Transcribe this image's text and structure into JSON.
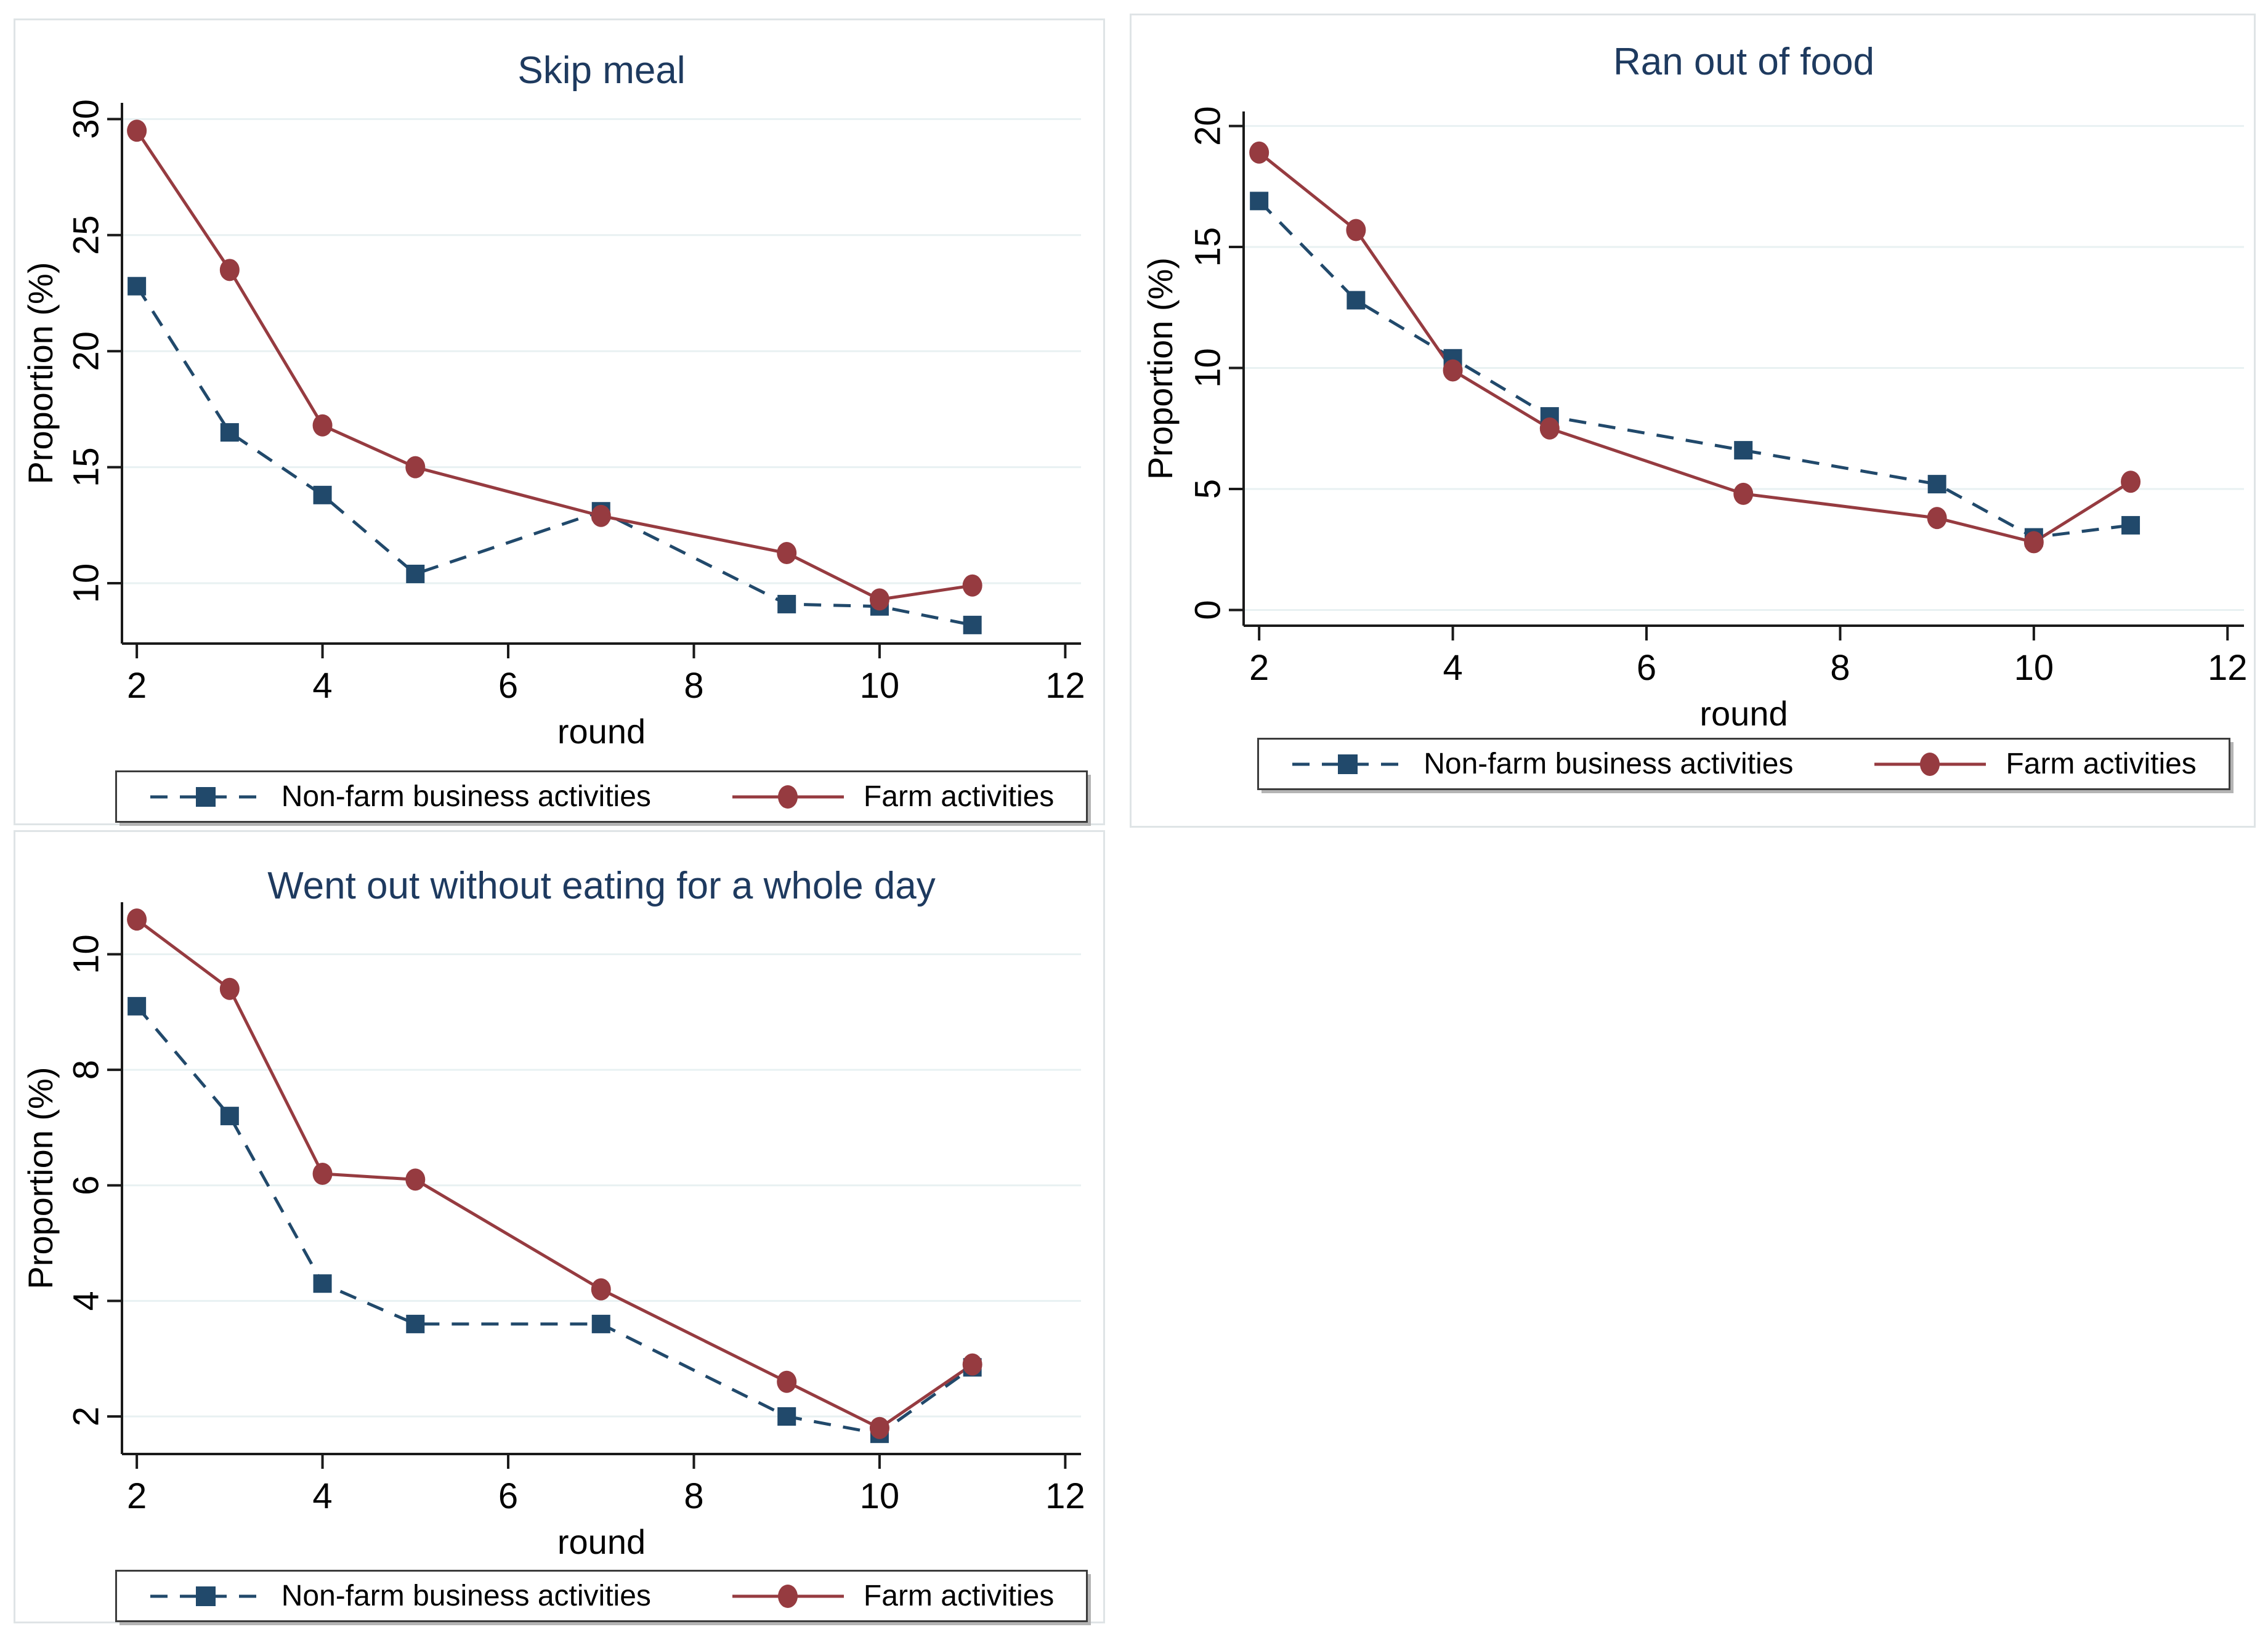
{
  "figure": {
    "background": "#ffffff",
    "panel_border_color": "#dfe4e6",
    "gridline_color": "#e8f1f2",
    "axis_color": "#1a1a1a",
    "title_color": "#1e3a5f"
  },
  "legend": {
    "nonfarm_label": "Non-farm business activities",
    "farm_label": "Farm activities",
    "nonfarm_color": "#21496b",
    "farm_color": "#963b40",
    "nonfarm_line": "dashed",
    "farm_line": "solid",
    "nonfarm_marker": "square",
    "farm_marker": "circle"
  },
  "chart_data": [
    {
      "type": "line",
      "title": "Skip meal",
      "xlabel": "round",
      "ylabel": "Proportion (%)",
      "x": [
        2,
        3,
        4,
        5,
        7,
        9,
        10,
        11
      ],
      "xticks": [
        2,
        4,
        6,
        8,
        10,
        12
      ],
      "yticks": [
        10,
        15,
        20,
        25,
        30
      ],
      "xlim": [
        1.84,
        12.17
      ],
      "ylim": [
        7.4,
        30.7
      ],
      "grid": "horizontal",
      "legend_position": "bottom-center",
      "series": [
        {
          "name": "Non-farm business activities",
          "color": "#21496b",
          "line": "dashed",
          "marker": "square",
          "values": [
            22.8,
            16.5,
            13.8,
            10.4,
            13.1,
            9.1,
            9.0,
            8.2
          ]
        },
        {
          "name": "Farm activities",
          "color": "#963b40",
          "line": "solid",
          "marker": "circle",
          "values": [
            29.5,
            23.5,
            16.8,
            15.0,
            12.9,
            11.3,
            9.3,
            9.9
          ]
        }
      ]
    },
    {
      "type": "line",
      "title": "Ran out of food",
      "xlabel": "round",
      "ylabel": "Proportion (%)",
      "x": [
        2,
        3,
        4,
        5,
        7,
        9,
        10,
        11
      ],
      "xticks": [
        2,
        4,
        6,
        8,
        10,
        12
      ],
      "yticks": [
        0,
        5,
        10,
        15,
        20
      ],
      "xlim": [
        1.84,
        12.17
      ],
      "ylim": [
        -0.65,
        20.6
      ],
      "grid": "horizontal",
      "legend_position": "bottom-center",
      "series": [
        {
          "name": "Non-farm business activities",
          "color": "#21496b",
          "line": "dashed",
          "marker": "square",
          "values": [
            16.9,
            12.8,
            10.4,
            8.0,
            6.6,
            5.2,
            3.0,
            3.5
          ]
        },
        {
          "name": "Farm activities",
          "color": "#963b40",
          "line": "solid",
          "marker": "circle",
          "values": [
            18.9,
            15.7,
            9.9,
            7.5,
            4.8,
            3.8,
            2.8,
            5.3
          ]
        }
      ]
    },
    {
      "type": "line",
      "title": "Went out without eating for a whole day",
      "xlabel": "round",
      "ylabel": "Proportion (%)",
      "x": [
        2,
        3,
        4,
        5,
        7,
        9,
        10,
        11
      ],
      "xticks": [
        2,
        4,
        6,
        8,
        10,
        12
      ],
      "yticks": [
        2,
        4,
        6,
        8,
        10
      ],
      "xlim": [
        1.84,
        12.17
      ],
      "ylim": [
        1.35,
        10.9
      ],
      "grid": "horizontal",
      "legend_position": "bottom-center",
      "series": [
        {
          "name": "Non-farm business activities",
          "color": "#21496b",
          "line": "dashed",
          "marker": "square",
          "values": [
            9.1,
            7.2,
            4.3,
            3.6,
            3.6,
            2.0,
            1.7,
            2.85
          ]
        },
        {
          "name": "Farm activities",
          "color": "#963b40",
          "line": "solid",
          "marker": "circle",
          "values": [
            10.6,
            9.4,
            6.2,
            6.1,
            4.2,
            2.6,
            1.8,
            2.9
          ]
        }
      ]
    }
  ]
}
